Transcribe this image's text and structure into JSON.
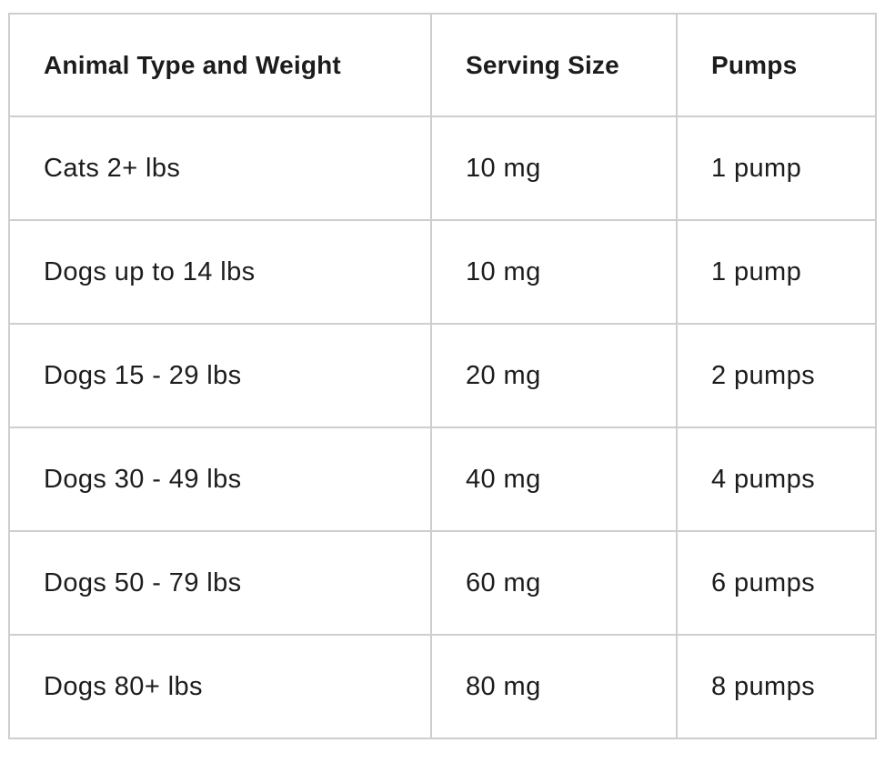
{
  "colors": {
    "border": "#cecece",
    "text": "#1c1c1e",
    "background": "#ffffff"
  },
  "chart_data": {
    "type": "table",
    "title": "",
    "columns": [
      "Animal Type and Weight",
      "Serving Size",
      "Pumps"
    ],
    "rows": [
      [
        "Cats 2+ lbs",
        "10 mg",
        "1 pump"
      ],
      [
        "Dogs up to 14 lbs",
        "10 mg",
        "1 pump"
      ],
      [
        "Dogs 15 - 29 lbs",
        "20 mg",
        "2 pumps"
      ],
      [
        "Dogs 30 - 49 lbs",
        "40 mg",
        "4 pumps"
      ],
      [
        "Dogs 50 - 79 lbs",
        "60 mg",
        "6 pumps"
      ],
      [
        "Dogs 80+ lbs",
        "80 mg",
        "8 pumps"
      ]
    ]
  }
}
